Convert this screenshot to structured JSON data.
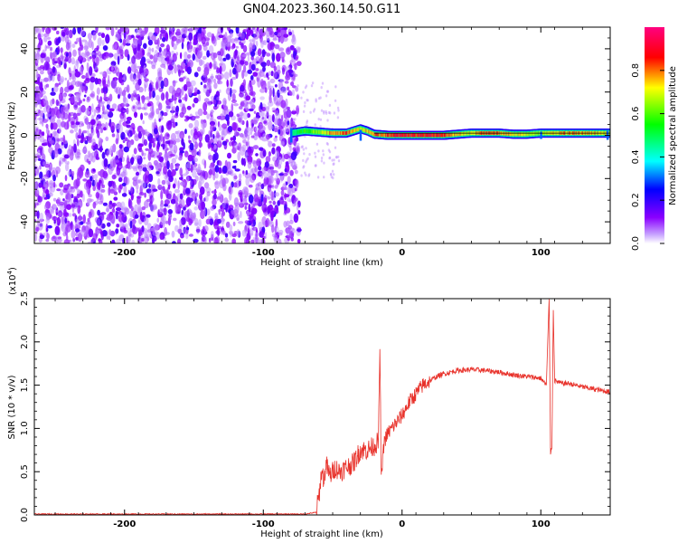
{
  "title": "GN04.2023.360.14.50.G11",
  "chart_data": [
    {
      "type": "heatmap",
      "xlabel": "Height of straight line (km)",
      "ylabel": "Frequency (Hz)",
      "xlim": [
        -265,
        150
      ],
      "ylim": [
        -50,
        50
      ],
      "xticks": [
        -200,
        -100,
        0,
        100
      ],
      "yticks": [
        -40,
        -20,
        0,
        20,
        40
      ],
      "noise_region": {
        "x": [
          -265,
          -78
        ],
        "y": [
          -50,
          50
        ]
      },
      "signal_track": {
        "x": [
          -80,
          -70,
          -60,
          -50,
          -40,
          -30,
          -25,
          -20,
          -10,
          0,
          10,
          20,
          30,
          40,
          50,
          60,
          70,
          80,
          90,
          100,
          110,
          120,
          130,
          140,
          150
        ],
        "freq": [
          1,
          2,
          1.5,
          1,
          1,
          3,
          2,
          0.5,
          0,
          0,
          0,
          0,
          0,
          0.5,
          1,
          1,
          1,
          0.5,
          0.5,
          1,
          1,
          1,
          1,
          1,
          1
        ],
        "amp": [
          0.5,
          0.6,
          0.7,
          0.85,
          0.9,
          0.75,
          0.8,
          0.85,
          0.9,
          0.95,
          0.95,
          0.95,
          0.9,
          0.8,
          0.75,
          0.9,
          0.85,
          0.8,
          0.75,
          0.7,
          0.8,
          0.85,
          0.85,
          0.8,
          0.75
        ]
      },
      "colorbar": {
        "label": "Normalized spectral amplitude",
        "range": [
          0,
          1
        ],
        "ticks": [
          "0.0",
          "0.2",
          "0.4",
          "0.6",
          "0.8"
        ],
        "colors": [
          "#ffffff",
          "#8a00ff",
          "#0000ff",
          "#00ffff",
          "#00ff00",
          "#ffff00",
          "#ff0000",
          "#ff0080"
        ]
      }
    },
    {
      "type": "line",
      "xlabel": "Height of straight line (km)",
      "ylabel": "SNR (10 * v/v)",
      "multiplier_label": "(x10",
      "multiplier_exp": "4",
      "xlim": [
        -265,
        150
      ],
      "ylim": [
        0,
        2.5
      ],
      "xticks": [
        -200,
        -100,
        0,
        100
      ],
      "yticks": [
        "0.0",
        "0.5",
        "1.0",
        "1.5",
        "2.0",
        "2.5"
      ],
      "color": "#e8312a",
      "series": [
        {
          "x": [
            -265,
            -200,
            -150,
            -100,
            -70,
            -62,
            -60,
            -58,
            -56,
            -55,
            -52,
            -50,
            -48,
            -45,
            -40,
            -35,
            -30,
            -25,
            -20,
            -17,
            -16,
            -15,
            -13,
            -10,
            -5,
            0,
            5,
            10,
            15,
            20,
            25,
            30,
            40,
            50,
            60,
            70,
            80,
            90,
            100,
            104,
            106,
            107,
            108,
            109,
            110,
            115,
            120,
            130,
            140,
            150
          ],
          "y": [
            0.01,
            0.01,
            0.01,
            0.01,
            0.01,
            0.03,
            0.2,
            0.5,
            0.4,
            0.6,
            0.45,
            0.5,
            0.55,
            0.5,
            0.55,
            0.6,
            0.75,
            0.75,
            0.8,
            0.85,
            1.97,
            0.4,
            0.85,
            0.95,
            1.05,
            1.15,
            1.3,
            1.4,
            1.5,
            1.55,
            1.6,
            1.63,
            1.67,
            1.68,
            1.67,
            1.65,
            1.62,
            1.6,
            1.58,
            1.5,
            2.5,
            0.72,
            0.8,
            2.38,
            1.55,
            1.52,
            1.52,
            1.48,
            1.45,
            1.42
          ]
        }
      ]
    }
  ]
}
